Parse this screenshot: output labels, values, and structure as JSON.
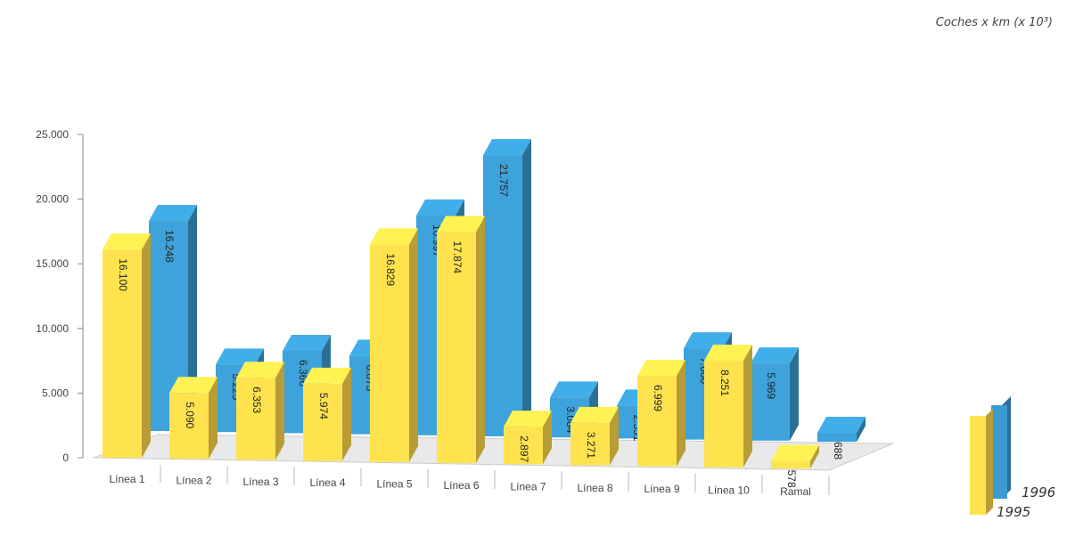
{
  "chart_data": {
    "type": "bar",
    "unit_label": "Coches x km (x 10³)",
    "categories": [
      "Línea 1",
      "Línea 2",
      "Línea 3",
      "Línea 4",
      "Línea 5",
      "Línea 6",
      "Línea 7",
      "Línea 8",
      "Línea 9",
      "Línea 10",
      "Ramal"
    ],
    "series": [
      {
        "name": "1995",
        "color": "#ffd84a",
        "values": [
          16100,
          5090,
          6353,
          5974,
          16829,
          17874,
          2897,
          3271,
          6999,
          8251,
          578
        ],
        "labels": [
          "16.100",
          "5.090",
          "6.353",
          "5.974",
          "16.829",
          "17.874",
          "2.897",
          "3.271",
          "6.999",
          "8.251",
          "578"
        ]
      },
      {
        "name": "1996",
        "color": "#3a9bd0",
        "values": [
          16248,
          5223,
          6366,
          6073,
          16997,
          21757,
          3084,
          2551,
          7060,
          5969,
          688
        ],
        "labels": [
          "16.248",
          "5.223",
          "6.366",
          "6.073",
          "16.997",
          "21.757",
          "3.084",
          "2.551",
          "7.060",
          "5.969",
          "688"
        ]
      }
    ],
    "ylim": [
      0,
      25000
    ],
    "yticks": [
      0,
      5000,
      10000,
      15000,
      20000,
      25000
    ],
    "ytick_labels": [
      "0",
      "5.000",
      "10.000",
      "15.000",
      "20.000",
      "25.000"
    ],
    "legend_position": "right",
    "style": "3d"
  }
}
